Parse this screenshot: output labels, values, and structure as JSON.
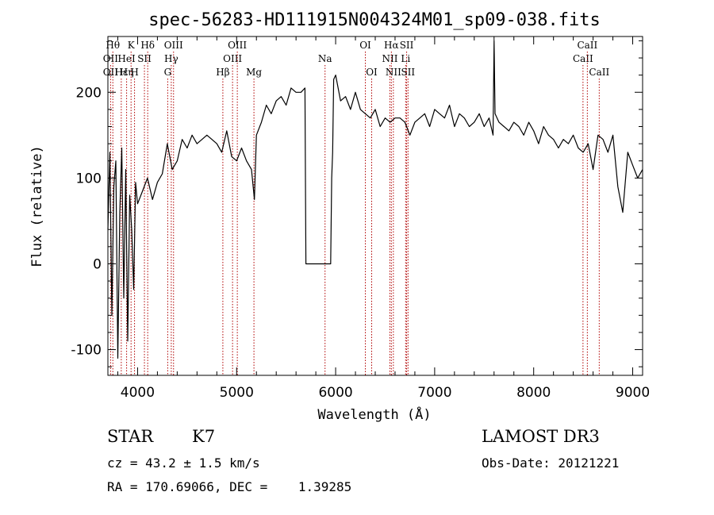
{
  "chart_data": {
    "type": "line",
    "title": "spec-56283-HD111915N004324M01_sp09-038.fits",
    "xlabel": "Wavelength (Å)",
    "ylabel": "Flux (relative)",
    "xlim": [
      3700,
      9100
    ],
    "ylim": [
      -130,
      265
    ],
    "xticks": [
      4000,
      5000,
      6000,
      7000,
      8000,
      9000
    ],
    "yticks": [
      -100,
      0,
      100,
      200
    ],
    "grid": false,
    "line_color": "#000000",
    "marker_color": "#b00000",
    "series": [
      {
        "x": [
          3700,
          3720,
          3740,
          3760,
          3780,
          3800,
          3820,
          3840,
          3860,
          3880,
          3900,
          3920,
          3940,
          3960,
          3980,
          4000,
          4050,
          4100,
          4150,
          4200,
          4250,
          4300,
          4350,
          4400,
          4450,
          4500,
          4550,
          4600,
          4650,
          4700,
          4750,
          4800,
          4850,
          4900,
          4950,
          5000,
          5050,
          5100,
          5150,
          5180,
          5200,
          5250,
          5300,
          5350,
          5400,
          5450,
          5500,
          5550,
          5600,
          5650,
          5690,
          5700,
          5710,
          5950,
          5960,
          5970,
          5980,
          6000,
          6050,
          6100,
          6150,
          6200,
          6250,
          6300,
          6350,
          6400,
          6450,
          6500,
          6550,
          6600,
          6650,
          6700,
          6750,
          6800,
          6850,
          6900,
          6950,
          7000,
          7050,
          7100,
          7150,
          7200,
          7250,
          7300,
          7350,
          7400,
          7450,
          7500,
          7550,
          7590,
          7600,
          7610,
          7650,
          7700,
          7750,
          7800,
          7850,
          7900,
          7950,
          8000,
          8050,
          8100,
          8150,
          8200,
          8250,
          8300,
          8350,
          8400,
          8450,
          8500,
          8550,
          8600,
          8650,
          8700,
          8750,
          8800,
          8850,
          8900,
          8950,
          9000,
          9050,
          9100
        ],
        "y": [
          40,
          130,
          -60,
          90,
          120,
          -110,
          60,
          135,
          -40,
          110,
          -90,
          80,
          40,
          -30,
          95,
          70,
          85,
          100,
          75,
          95,
          105,
          140,
          110,
          120,
          145,
          135,
          150,
          140,
          145,
          150,
          145,
          140,
          130,
          155,
          125,
          120,
          135,
          120,
          110,
          75,
          150,
          165,
          185,
          175,
          190,
          195,
          185,
          205,
          200,
          200,
          205,
          0,
          0,
          0,
          100,
          130,
          215,
          220,
          190,
          195,
          180,
          200,
          180,
          175,
          170,
          180,
          160,
          170,
          165,
          170,
          170,
          165,
          150,
          165,
          170,
          175,
          160,
          180,
          175,
          170,
          185,
          160,
          175,
          170,
          160,
          165,
          175,
          160,
          170,
          150,
          260,
          175,
          165,
          160,
          155,
          165,
          160,
          150,
          165,
          155,
          140,
          160,
          150,
          145,
          135,
          145,
          140,
          150,
          135,
          130,
          140,
          110,
          150,
          145,
          130,
          150,
          90,
          60,
          130,
          115,
          100,
          110
        ]
      }
    ],
    "line_markers": [
      {
        "w": 3750,
        "label": "Hθ",
        "row": 0
      },
      {
        "w": 3727,
        "label": "OII",
        "row": 1
      },
      {
        "w": 3727,
        "label": "OII",
        "row": 2
      },
      {
        "w": 3835,
        "label": "Hε",
        "row": 2
      },
      {
        "w": 3889,
        "label": "Hη",
        "row": 2
      },
      {
        "w": 3889,
        "label": "HeI",
        "row": 1
      },
      {
        "w": 3934,
        "label": "K",
        "row": 0
      },
      {
        "w": 3969,
        "label": "H",
        "row": 2
      },
      {
        "w": 4069,
        "label": "SII",
        "row": 1
      },
      {
        "w": 4102,
        "label": "Hδ",
        "row": 0
      },
      {
        "w": 4304,
        "label": "G",
        "row": 2
      },
      {
        "w": 4340,
        "label": "Hγ",
        "row": 1
      },
      {
        "w": 4363,
        "label": "OIII",
        "row": 0
      },
      {
        "w": 4861,
        "label": "Hβ",
        "row": 2
      },
      {
        "w": 4959,
        "label": "OIII",
        "row": 1
      },
      {
        "w": 5007,
        "label": "OIII",
        "row": 0
      },
      {
        "w": 5175,
        "label": "Mg",
        "row": 2
      },
      {
        "w": 5893,
        "label": "Na",
        "row": 1
      },
      {
        "w": 6300,
        "label": "OI",
        "row": 0
      },
      {
        "w": 6364,
        "label": "OI",
        "row": 2
      },
      {
        "w": 6548,
        "label": "NII",
        "row": 1
      },
      {
        "w": 6563,
        "label": "Hα",
        "row": 0
      },
      {
        "w": 6583,
        "label": "NII",
        "row": 2
      },
      {
        "w": 6707,
        "label": "Li",
        "row": 1
      },
      {
        "w": 6717,
        "label": "SII",
        "row": 0
      },
      {
        "w": 6731,
        "label": "SII",
        "row": 2
      },
      {
        "w": 8498,
        "label": "CaII",
        "row": 1
      },
      {
        "w": 8542,
        "label": "CaII",
        "row": 0
      },
      {
        "w": 8662,
        "label": "CaII",
        "row": 2
      }
    ]
  },
  "info": {
    "object_class": "STAR",
    "subclass": "K7",
    "survey": "LAMOST DR3",
    "cz": "cz = 43.2 ± 1.5 km/s",
    "obs_date": "Obs-Date: 20121221",
    "coords": "RA = 170.69066, DEC =    1.39285"
  }
}
